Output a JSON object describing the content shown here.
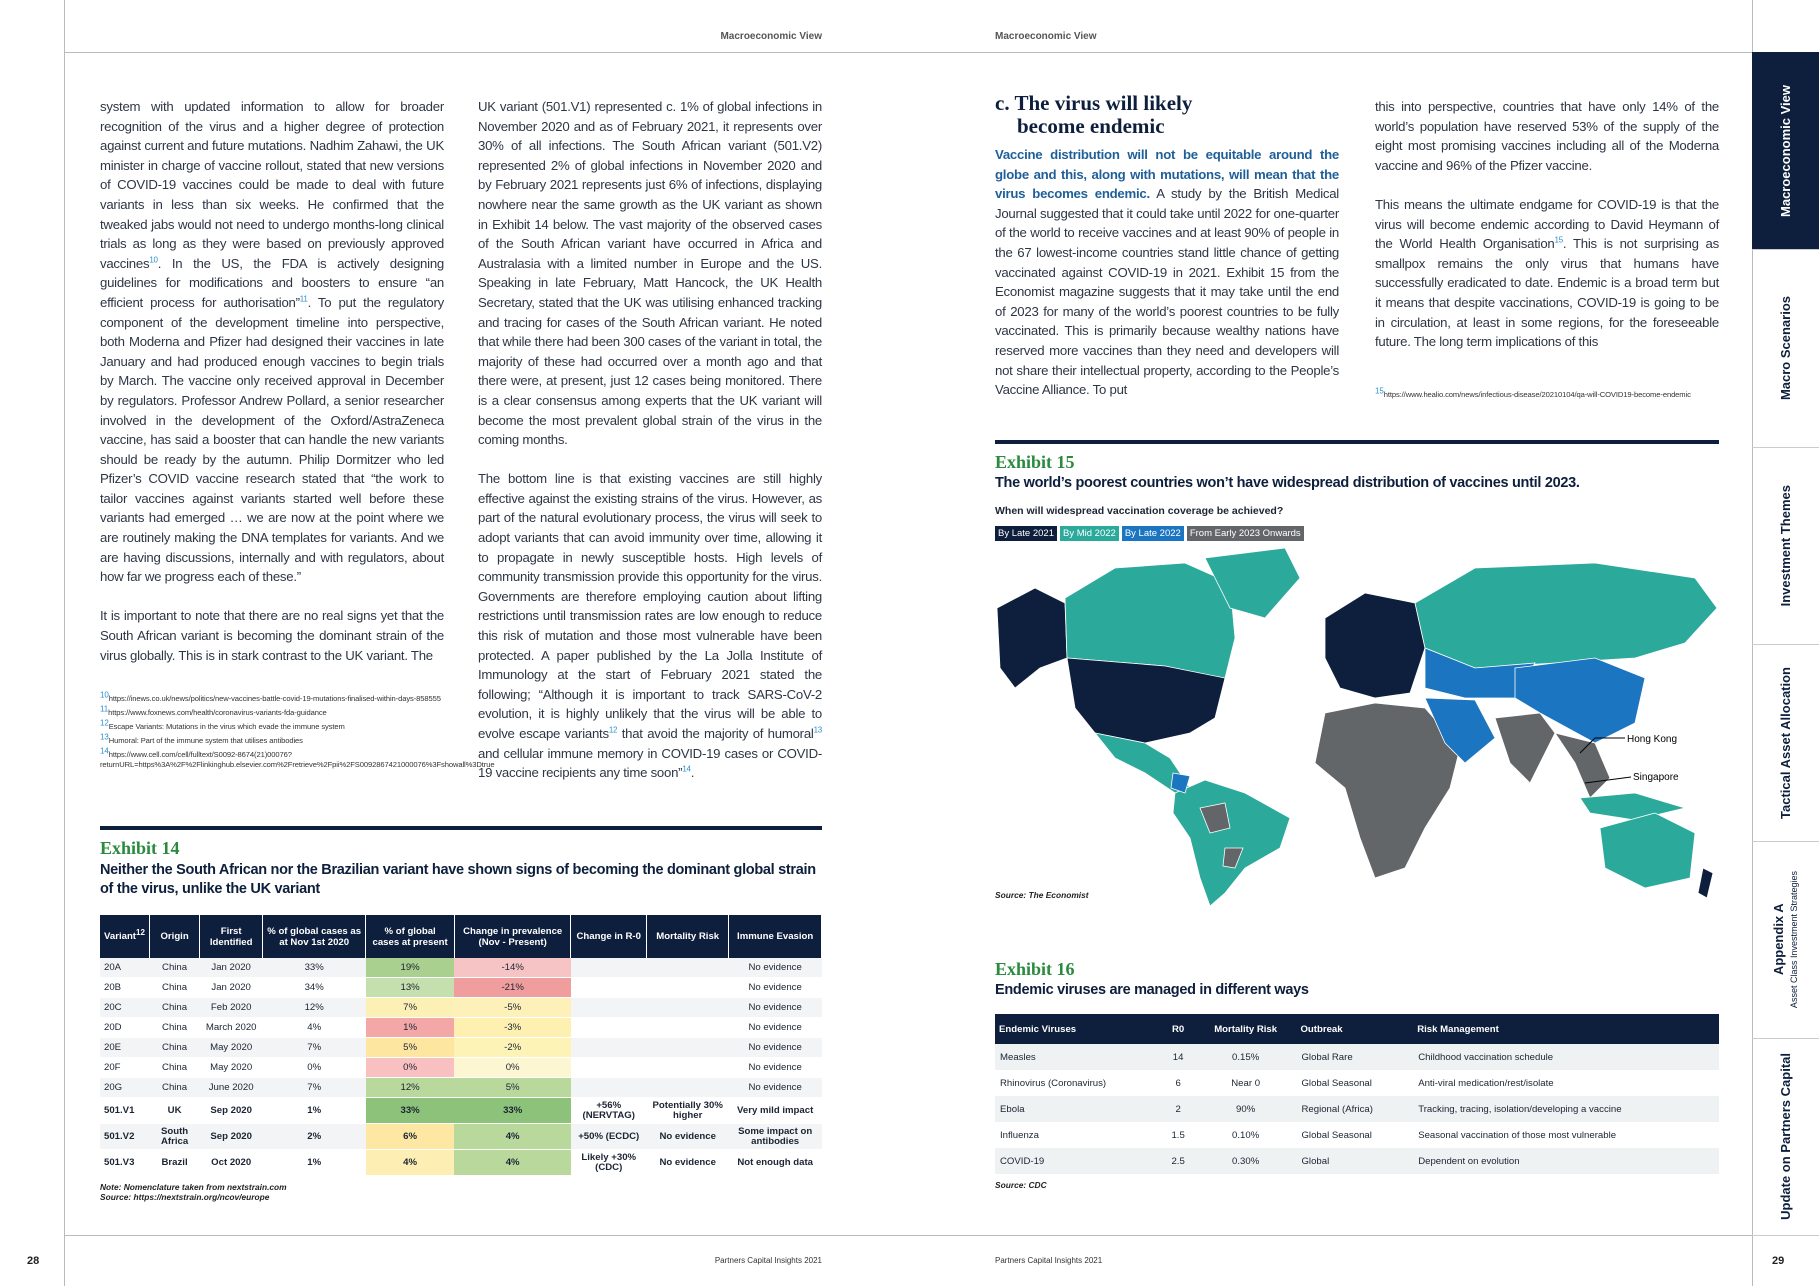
{
  "header": {
    "left": "Macroeconomic View",
    "right": "Macroeconomic View"
  },
  "page_left": {
    "column1": [
      {
        "runs": [
          "system with updated information to allow for broader recognition of the virus and a higher degree of protection against current and future mutations. Nadhim Zahawi, the UK minister in charge of vaccine rollout, stated that new versions of COVID-19 vaccines could be made to deal with future variants in less than six weeks. He confirmed that the tweaked jabs would not need to undergo months-long clinical trials as long as they were based on previously approved vaccines",
          "10",
          ". In the US, the FDA is actively designing guidelines for modifications and boosters to ensure “an efficient process for authorisation”",
          "11",
          ". To put the regulatory component of the development timeline into perspective, both Moderna and Pfizer had designed their vaccines in late January and had produced enough vaccines to begin trials by March. The vaccine only received approval in December by regulators. Professor Andrew Pollard, a senior researcher involved in the development of the Oxford/AstraZeneca vaccine, has said a booster that can handle the new variants should be ready by the autumn. Philip Dormitzer who led Pfizer’s COVID vaccine research stated that “the work to tailor vaccines against variants started well before these variants had emerged … we are now at the point where we are routinely making the DNA templates for variants. And we are having discussions, internally and with regulators, about how far we progress each of these.”"
        ]
      },
      {
        "runs": [
          "It is important to note that there are no real signs yet that the South African variant is becoming the dominant strain of the virus globally. This is in stark contrast to the UK variant. The"
        ]
      }
    ],
    "column2": [
      {
        "runs": [
          "UK variant (501.V1) represented c. 1% of global infections in November 2020 and as of February 2021, it represents over 30% of all infections. The South African variant (501.V2) represented 2% of global infections in November 2020 and by February 2021 represents just 6% of infections, displaying nowhere near the same growth as the UK variant as shown in Exhibit 14 below. The vast majority of the observed cases of the South African variant have occurred in Africa and Australasia with a limited number in Europe and the US. Speaking in late February, Matt Hancock, the UK Health Secretary, stated that the UK was utilising enhanced tracking and tracing for cases of the South African variant. He noted that while there had been 300 cases of the variant in total, the majority of these had occurred over a month ago and that there were, at present, just 12 cases being monitored. There is a clear consensus among experts that the UK variant will become the most prevalent global strain of the virus in the coming months."
        ]
      },
      {
        "runs": [
          "The bottom line is that existing vaccines are still highly effective against the existing strains of the virus. However, as part of the natural evolutionary process, the virus will seek to adopt variants that can avoid immunity over time, allowing it to propagate in newly susceptible hosts. High levels of community transmission provide this opportunity for the virus. Governments are therefore employing caution about lifting restrictions until transmission rates are low enough to reduce this risk of mutation and those most vulnerable have been protected. A paper published by the La Jolla Institute of Immunology at the start of February 2021 stated the following; “Although it is important to track SARS-CoV-2 evolution, it is highly unlikely that the virus will be able to evolve escape variants",
          "12",
          " that avoid the majority of humoral",
          "13",
          " and cellular immune memory in COVID-19 cases or COVID-19 vaccine recipients any time soon”",
          "14",
          "."
        ]
      }
    ],
    "footnotes": [
      {
        "num": "10",
        "text": "https://inews.co.uk/news/politics/new-vaccines-battle-covid-19-mutations-finalised-within-days-858555"
      },
      {
        "num": "11",
        "text": "https://www.foxnews.com/health/coronavirus-variants-fda-guidance"
      },
      {
        "num": "12",
        "text": "Escape Variants: Mutations in the virus which evade the immune system"
      },
      {
        "num": "13",
        "text": "Humoral: Part of the immune system that utilises antibodies"
      },
      {
        "num": "14",
        "text": "https://www.cell.com/cell/fulltext/S0092-8674(21)00076?returnURL=https%3A%2F%2Flinkinghub.elsevier.com%2Fretrieve%2Fpii%2FS0092867421000076%3Fshowall%3Dtrue"
      }
    ],
    "exhibit14": {
      "label": "Exhibit 14",
      "title": "Neither the South African nor the Brazilian variant have shown signs of becoming the dominant global strain of the virus, unlike the UK variant",
      "headers": [
        "Variant",
        "Origin",
        "First Identified",
        "% of global cases as at Nov 1st 2020",
        "% of global cases at present",
        "Change in prevalence (Nov - Present)",
        "Change in R-0",
        "Mortality Risk",
        "Immune Evasion"
      ],
      "header_sup": "12",
      "rows": [
        [
          "20A",
          "China",
          "Jan 2020",
          "33%",
          "19%",
          "-14%",
          null,
          null,
          "No evidence"
        ],
        [
          "20B",
          "China",
          "Jan 2020",
          "34%",
          "13%",
          "-21%",
          null,
          null,
          "No evidence"
        ],
        [
          "20C",
          "China",
          "Feb 2020",
          "12%",
          "7%",
          "-5%",
          null,
          null,
          "No evidence"
        ],
        [
          "20D",
          "China",
          "March 2020",
          "4%",
          "1%",
          "-3%",
          null,
          null,
          "No evidence"
        ],
        [
          "20E",
          "China",
          "May 2020",
          "7%",
          "5%",
          "-2%",
          null,
          null,
          "No evidence"
        ],
        [
          "20F",
          "China",
          "May 2020",
          "0%",
          "0%",
          "0%",
          null,
          null,
          "No evidence"
        ],
        [
          "20G",
          "China",
          "June 2020",
          "7%",
          "12%",
          "5%",
          null,
          null,
          "No evidence"
        ],
        [
          "501.V1",
          "UK",
          "Sep 2020",
          "1%",
          "33%",
          "33%",
          "+56% (NERVTAG)",
          "Potentially 30% higher",
          "Very mild impact"
        ],
        [
          "501.V2",
          "South Africa",
          "Sep 2020",
          "2%",
          "6%",
          "4%",
          "+50% (ECDC)",
          "No evidence",
          "Some impact on antibodies"
        ],
        [
          "501.V3",
          "Brazil",
          "Oct 2020",
          "1%",
          "4%",
          "4%",
          "Likely +30% (CDC)",
          "No evidence",
          "Not enough data"
        ]
      ],
      "note": "Note: Nomenclature taken from nextstrain.com",
      "source": "Source: https://nextstrain.org/ncov/europe"
    },
    "footer": {
      "page": "28",
      "text": "Partners Capital Insights 2021"
    }
  },
  "page_right": {
    "heading": [
      "c. The virus will likely",
      "become endemic"
    ],
    "column1": [
      {
        "lead": "Vaccine distribution will not be equitable around the globe and this, along with mutations, will mean that the virus becomes endemic.",
        "runs": [
          " A study by the British Medical Journal suggested that it could take until 2022 for one-quarter of the world to receive vaccines and at least 90% of people in the 67 lowest-income countries stand little chance of getting vaccinated against COVID-19 in 2021. Exhibit 15 from the Economist magazine suggests that it may take until the end of 2023 for many of the world’s poorest countries to be fully vaccinated. This is primarily because wealthy nations have reserved more vaccines than they need and developers will not share their intellectual property, according to the People’s Vaccine Alliance. To put"
        ]
      }
    ],
    "column2": [
      {
        "runs": [
          "this into perspective, countries that have only 14% of the world’s population have reserved 53% of the supply of the eight most promising vaccines including all of the Moderna vaccine and 96% of the Pfizer vaccine."
        ]
      },
      {
        "runs": [
          "This means the ultimate endgame for COVID-19 is that the virus will become endemic according to David Heymann of the World Health Organisation",
          "15",
          ". This is not surprising as smallpox remains the only virus that humans have successfully eradicated to date. Endemic is a broad term but it means that despite vaccinations, COVID-19 is going to be in circulation, at least in some regions, for the foreseeable future. The long term implications of this"
        ]
      }
    ],
    "footnotes": [
      {
        "num": "15",
        "text": "https://www.healio.com/news/infectious-disease/20210104/qa-will-COVID19-become-endemic"
      }
    ],
    "exhibit15": {
      "label": "Exhibit 15",
      "title": "The world’s poorest countries won’t have widespread distribution of vaccines until 2023.",
      "subtitle": "When will widespread vaccination coverage be achieved?",
      "legend": [
        {
          "label": "By Late 2021",
          "color": "#0d1f3c"
        },
        {
          "label": "By Mid 2022",
          "color": "#2ba99b"
        },
        {
          "label": "By Late 2022",
          "color": "#1b75c0"
        },
        {
          "label": "From Early 2023 Onwards",
          "color": "#636669"
        }
      ],
      "map_labels": [
        "Hong Kong",
        "Singapore"
      ],
      "source": "Source: The Economist"
    },
    "exhibit16": {
      "label": "Exhibit 16",
      "title": "Endemic viruses are managed in different ways",
      "headers": [
        "Endemic Viruses",
        "R0",
        "Mortality Risk",
        "Outbreak",
        "Risk Management"
      ],
      "rows": [
        [
          "Measles",
          "14",
          "0.15%",
          "Global Rare",
          "Childhood vaccination schedule"
        ],
        [
          "Rhinovirus (Coronavirus)",
          "6",
          "Near 0",
          "Global Seasonal",
          "Anti-viral medication/rest/isolate"
        ],
        [
          "Ebola",
          "2",
          "90%",
          "Regional (Africa)",
          "Tracking, tracing, isolation/developing a vaccine"
        ],
        [
          "Influenza",
          "1.5",
          "0.10%",
          "Global Seasonal",
          "Seasonal vaccination of those most vulnerable"
        ],
        [
          "COVID-19",
          "2.5",
          "0.30%",
          "Global",
          "Dependent on evolution"
        ]
      ],
      "source": "Source: CDC"
    },
    "footer": {
      "page": "29",
      "text": "Partners Capital Insights 2021"
    }
  },
  "side_tabs": [
    {
      "title": "Macroeconomic View"
    },
    {
      "title": "Macro Scenarios"
    },
    {
      "title": "Investment Themes"
    },
    {
      "title": "Tactical Asset Allocation"
    },
    {
      "title": "Appendix A",
      "subtitle": "Asset Class Investment Strategies"
    },
    {
      "title": "Update on Partners Capital"
    }
  ]
}
